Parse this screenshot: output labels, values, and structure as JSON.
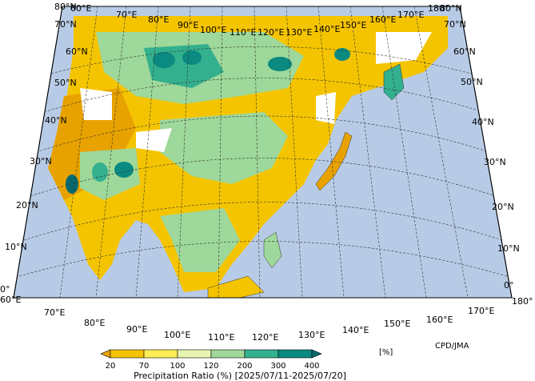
{
  "map": {
    "title": "Precipitation Ratio (%) [2025/07/11-2025/07/20]",
    "credit": "CPD/JMA",
    "unit": "[%]",
    "ocean_color": "#b8cbe6",
    "lon_labels_top": [
      "60°E",
      "70°E",
      "80°E",
      "90°E",
      "100°E",
      "110°E",
      "120°E",
      "130°E",
      "140°E",
      "150°E",
      "160°E",
      "170°E",
      "180°"
    ],
    "lon_labels_bottom": [
      "60°E",
      "70°E",
      "80°E",
      "90°E",
      "100°E",
      "110°E",
      "120°E",
      "130°E",
      "140°E",
      "150°E",
      "160°E",
      "170°E",
      "180°"
    ],
    "lat_labels_left": [
      "80°N",
      "70°N",
      "60°N",
      "50°N",
      "40°N",
      "30°N",
      "20°N",
      "10°N",
      "0°"
    ],
    "lat_labels_right": [
      "80°N",
      "70°N",
      "60°N",
      "50°N",
      "40°N",
      "30°N",
      "20°N",
      "10°N",
      "0°"
    ]
  },
  "legend": {
    "ticks": [
      "20",
      "70",
      "100",
      "120",
      "200",
      "300",
      "400"
    ],
    "colors": [
      "#e8a200",
      "#f5c400",
      "#ffee55",
      "#e8f5b0",
      "#9ed89a",
      "#33b08e",
      "#0a8a80",
      "#056a70"
    ]
  }
}
